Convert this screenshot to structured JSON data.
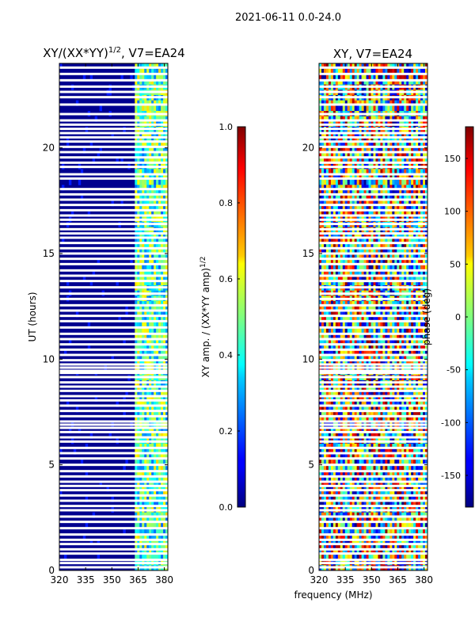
{
  "figure": {
    "suptitle": "2021-06-11 0.0-24.0",
    "xlabel": "frequency (MHz)",
    "ylabel": "UT (hours)"
  },
  "chart_data": [
    {
      "type": "heatmap",
      "title_main": "XY/(XX*YY)",
      "title_sup": "1/2",
      "title_rest": ", V7=EA24",
      "xlabel": "frequency (MHz)",
      "ylabel": "UT (hours)",
      "xlim": [
        320,
        382
      ],
      "ylim": [
        0,
        24
      ],
      "xticks": [
        320,
        335,
        350,
        365,
        380
      ],
      "yticks": [
        0,
        5,
        10,
        15,
        20
      ],
      "colorbar": {
        "label_main": "XY amp. / (XX*YY amp)",
        "label_sup": "1/2",
        "range": [
          0.0,
          1.0
        ],
        "ticks": [
          "0.0",
          "0.2",
          "0.4",
          "0.6",
          "0.8",
          "1.0"
        ],
        "colormap": "jet"
      }
    },
    {
      "type": "heatmap",
      "title": "XY, V7=EA24",
      "xlabel": "frequency (MHz)",
      "ylabel": "",
      "xlim": [
        320,
        382
      ],
      "ylim": [
        0,
        24
      ],
      "xticks": [
        320,
        335,
        350,
        365,
        380
      ],
      "yticks": [
        0,
        5,
        10,
        15,
        20
      ],
      "colorbar": {
        "label": "phase (deg)",
        "range": [
          -180,
          180
        ],
        "ticks": [
          "-150",
          "-100",
          "-50",
          "0",
          "50",
          "100",
          "150"
        ],
        "colormap": "jet"
      }
    }
  ],
  "flagged_rows_ut": [
    0.15,
    0.35,
    0.5,
    0.8,
    1.0,
    1.25,
    1.45,
    1.7,
    2.0,
    2.3,
    2.55,
    2.85,
    3.05,
    3.3,
    3.55,
    3.8,
    4.0,
    4.2,
    4.45,
    4.7,
    5.0,
    5.3,
    5.55,
    5.8,
    6.1,
    6.3,
    6.55,
    6.75,
    6.9,
    7.05,
    7.3,
    7.55,
    7.8,
    8.05,
    8.25,
    8.5,
    8.7,
    8.9,
    9.15,
    9.35,
    9.45,
    9.6,
    9.75,
    9.95,
    10.2,
    10.45,
    10.7,
    10.95,
    11.2,
    11.5,
    11.8,
    12.05,
    12.3,
    12.55,
    12.85,
    13.1,
    13.4,
    13.7,
    13.95,
    14.2,
    14.5,
    14.75,
    15.0,
    15.25,
    15.5,
    15.75,
    15.95,
    16.15,
    16.4,
    16.6,
    16.8,
    17.05,
    17.3,
    17.55,
    17.8,
    18.05,
    18.55,
    18.75,
    19.1,
    19.3,
    19.55,
    19.8,
    20.05,
    20.3,
    20.5,
    20.7,
    20.9,
    21.1,
    21.3,
    21.6,
    22.05,
    22.4,
    22.65,
    22.9,
    23.2,
    23.5,
    23.8
  ]
}
